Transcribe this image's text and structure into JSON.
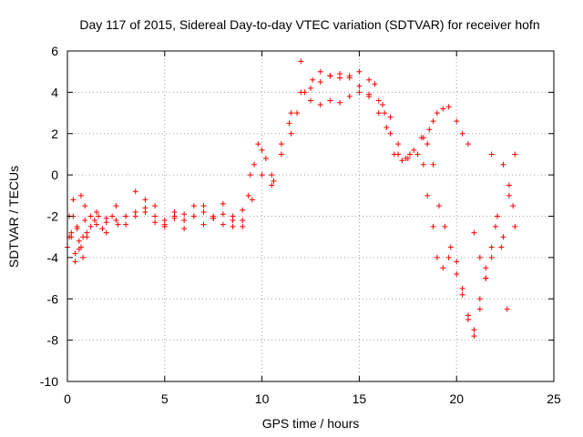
{
  "chart_data": {
    "type": "scatter",
    "title": "Day 117 of 2015, Sidereal Day-to-day VTEC variation (SDTVAR) for receiver hofn",
    "xlabel": "GPS time / hours",
    "ylabel": "SDTVAR / TECUs",
    "xlim": [
      0,
      25
    ],
    "ylim": [
      -10,
      6
    ],
    "x_ticks": [
      0,
      5,
      10,
      15,
      20,
      25
    ],
    "y_ticks": [
      -10,
      -8,
      -6,
      -4,
      -2,
      0,
      2,
      4,
      6
    ],
    "grid": true,
    "marker": "+",
    "color": "#ff0000",
    "series": [
      {
        "x": [
          0.0,
          0.1,
          0.2,
          0.3,
          0.4,
          0.5,
          0.6,
          0.7,
          0.8,
          0.9,
          1.0,
          1.2,
          1.4,
          1.6,
          1.8,
          2.0,
          2.3,
          2.6,
          3.0,
          3.5,
          4.0,
          4.5,
          5.0,
          5.5,
          6.0,
          6.5,
          7.0,
          7.5,
          8.0,
          8.5,
          9.0,
          9.3,
          9.6,
          10.0,
          10.5,
          11.0,
          11.5,
          12.0,
          12.5,
          13.0,
          13.5,
          14.0,
          14.5,
          15.0,
          15.5,
          16.0,
          16.3,
          16.6,
          17.0,
          17.5,
          18.0,
          18.3,
          18.6,
          18.8,
          19.0,
          19.3,
          19.6,
          20.0,
          20.3,
          20.6,
          20.9,
          21.2,
          21.5,
          21.8,
          22.1,
          22.4,
          22.7,
          23.0
        ],
        "y": [
          -3.5,
          -2.0,
          -3.0,
          -1.2,
          -3.8,
          -2.5,
          -3.2,
          -1.0,
          -3.0,
          -2.2,
          -3.0,
          -2.5,
          -2.2,
          -2.0,
          -2.6,
          -2.3,
          -2.0,
          -2.4,
          -2.0,
          -1.8,
          -1.6,
          -2.0,
          -2.2,
          -2.1,
          -1.9,
          -2.0,
          -1.8,
          -2.1,
          -1.9,
          -2.2,
          -1.7,
          -1.0,
          0.5,
          1.2,
          0.0,
          1.0,
          3.0,
          4.0,
          4.2,
          4.5,
          4.8,
          4.7,
          4.8,
          4.3,
          3.9,
          3.6,
          3.0,
          2.0,
          1.0,
          0.8,
          1.0,
          1.8,
          2.2,
          2.6,
          3.0,
          3.2,
          3.3,
          2.6,
          2.0,
          1.5,
          -2.8,
          -4.0,
          -4.5,
          -3.5,
          -2.0,
          -3.0,
          -1.0,
          -2.5
        ]
      },
      {
        "x": [
          0.1,
          0.3,
          0.5,
          0.7,
          0.9,
          1.2,
          1.5,
          2.0,
          2.5,
          3.0,
          3.5,
          4.0,
          4.5,
          5.0,
          5.5,
          6.0,
          6.5,
          7.0,
          7.5,
          8.0,
          8.5,
          9.0,
          9.5,
          10.0,
          10.5,
          11.0,
          11.5,
          12.0,
          12.5,
          13.0,
          13.5,
          14.0,
          14.5,
          15.0,
          15.5,
          16.0,
          16.4,
          16.8,
          17.2,
          17.6,
          18.0,
          18.3,
          18.5,
          18.8,
          19.0,
          19.3,
          19.6,
          20.0,
          20.3,
          20.6,
          20.9,
          21.2,
          21.5,
          21.8,
          22.0,
          22.3,
          22.6,
          22.9
        ],
        "y": [
          -3.0,
          -2.0,
          -2.6,
          -3.5,
          -1.5,
          -2.0,
          -1.8,
          -2.1,
          -1.5,
          -2.0,
          -0.8,
          -1.8,
          -1.5,
          -2.4,
          -2.0,
          -2.2,
          -2.0,
          -1.5,
          -2.1,
          -2.4,
          -2.0,
          -2.5,
          -1.2,
          0.0,
          -0.5,
          1.0,
          2.0,
          5.5,
          3.6,
          3.4,
          3.6,
          3.5,
          3.8,
          4.0,
          3.8,
          3.0,
          2.3,
          1.0,
          0.7,
          1.0,
          1.0,
          0.5,
          -1.0,
          -2.5,
          -4.0,
          -4.5,
          -4.0,
          -4.2,
          -5.5,
          -7.0,
          -7.8,
          -6.5,
          -5.0,
          -4.0,
          -2.5,
          -3.5,
          -6.5,
          -1.5
        ]
      },
      {
        "x": [
          0.2,
          0.4,
          0.6,
          0.8,
          1.0,
          1.5,
          2.0,
          2.5,
          3.0,
          3.5,
          4.0,
          4.5,
          5.0,
          5.5,
          6.0,
          6.5,
          7.0,
          7.5,
          8.0,
          8.5,
          9.0,
          9.4,
          9.8,
          10.2,
          10.6,
          11.0,
          11.4,
          11.8,
          12.2,
          12.6,
          13.0,
          13.5,
          14.0,
          14.5,
          15.0,
          15.5,
          15.8,
          16.2,
          16.6,
          17.0,
          17.4,
          17.8,
          18.2,
          18.5,
          18.8,
          19.1,
          19.4,
          19.7,
          20.0,
          20.3,
          20.6,
          20.9,
          21.2,
          21.5,
          21.8,
          22.1,
          22.4,
          22.7,
          23.0
        ],
        "y": [
          -2.8,
          -4.2,
          -3.6,
          -4.0,
          -2.8,
          -2.4,
          -2.8,
          -2.2,
          -2.4,
          -2.0,
          -1.2,
          -2.3,
          -2.5,
          -1.8,
          -2.6,
          -1.5,
          -2.4,
          -2.0,
          -1.4,
          -2.5,
          -2.2,
          0.0,
          1.5,
          0.8,
          -0.3,
          1.5,
          2.5,
          3.0,
          4.0,
          4.6,
          5.0,
          4.8,
          4.9,
          4.7,
          5.0,
          4.6,
          4.4,
          3.4,
          2.8,
          1.5,
          0.8,
          1.2,
          1.8,
          1.5,
          0.5,
          -1.5,
          -2.5,
          -3.5,
          -4.8,
          -5.8,
          -6.8,
          -7.5,
          -6.0,
          -5.0,
          1.0,
          -2.0,
          0.5,
          -0.5,
          1.0
        ]
      }
    ]
  }
}
